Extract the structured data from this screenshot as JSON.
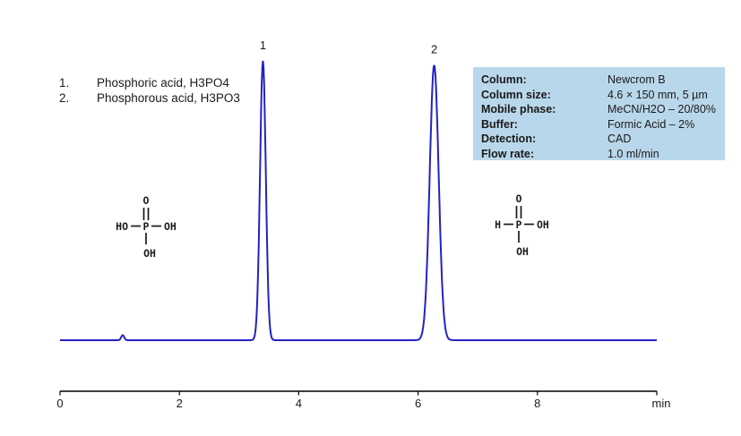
{
  "legend": {
    "items": [
      {
        "num": "1.",
        "name": "Phosphoric acid, H3PO4"
      },
      {
        "num": "2.",
        "name": "Phosphorous acid, H3PO3"
      }
    ]
  },
  "infobox": {
    "bg_color": "#b9d7ea",
    "rows": [
      {
        "label": "Column:",
        "value": "Newcrom B"
      },
      {
        "label": "Column size:",
        "value": "4.6 × 150 mm, 5 µm"
      },
      {
        "label": "Mobile phase:",
        "value": "MeCN/H2O – 20/80%"
      },
      {
        "label": "Buffer:",
        "value": "Formic Acid –  2%"
      },
      {
        "label": "Detection:",
        "value": "CAD"
      },
      {
        "label": "Flow rate:",
        "value": "1.0 ml/min"
      }
    ]
  },
  "structures": [
    {
      "name": "phosphoric-acid",
      "top": "O",
      "center": "P",
      "left": "HO",
      "right": "OH",
      "bottom": "OH"
    },
    {
      "name": "phosphorous-acid",
      "top": "O",
      "center": "P",
      "left": "H",
      "right": "OH",
      "bottom": "OH"
    }
  ],
  "chart_data": {
    "type": "line",
    "title": "",
    "xlabel": "min",
    "ylabel": "",
    "xlim": [
      0,
      10
    ],
    "x_ticks": [
      0,
      2,
      4,
      6,
      8
    ],
    "x_unit_label": "min",
    "grid": false,
    "trace_color": "#2323c0",
    "baseline_level": 0,
    "peaks": [
      {
        "label": "1",
        "rt_min": 3.4,
        "rel_height": 1.0,
        "sigma_min": 0.048,
        "compound": "Phosphoric acid, H3PO4"
      },
      {
        "label": "2",
        "rt_min": 6.27,
        "rel_height": 0.985,
        "sigma_min": 0.075,
        "compound": "Phosphorous acid, H3PO3"
      },
      {
        "label": "",
        "rt_min": 1.05,
        "rel_height": 0.018,
        "sigma_min": 0.025,
        "compound": "unlabeled baseline blip"
      }
    ]
  }
}
